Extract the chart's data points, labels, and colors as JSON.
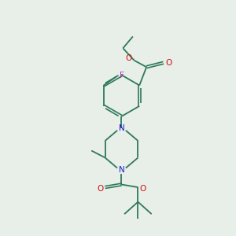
{
  "bg_color": "#e8eee8",
  "bond_color": "#2d7a5a",
  "n_color": "#1a1acc",
  "o_color": "#cc1111",
  "f_color": "#cc22cc",
  "figsize": [
    3.0,
    3.0
  ],
  "dpi": 100,
  "xlim": [
    0,
    10
  ],
  "ylim": [
    0,
    10
  ]
}
